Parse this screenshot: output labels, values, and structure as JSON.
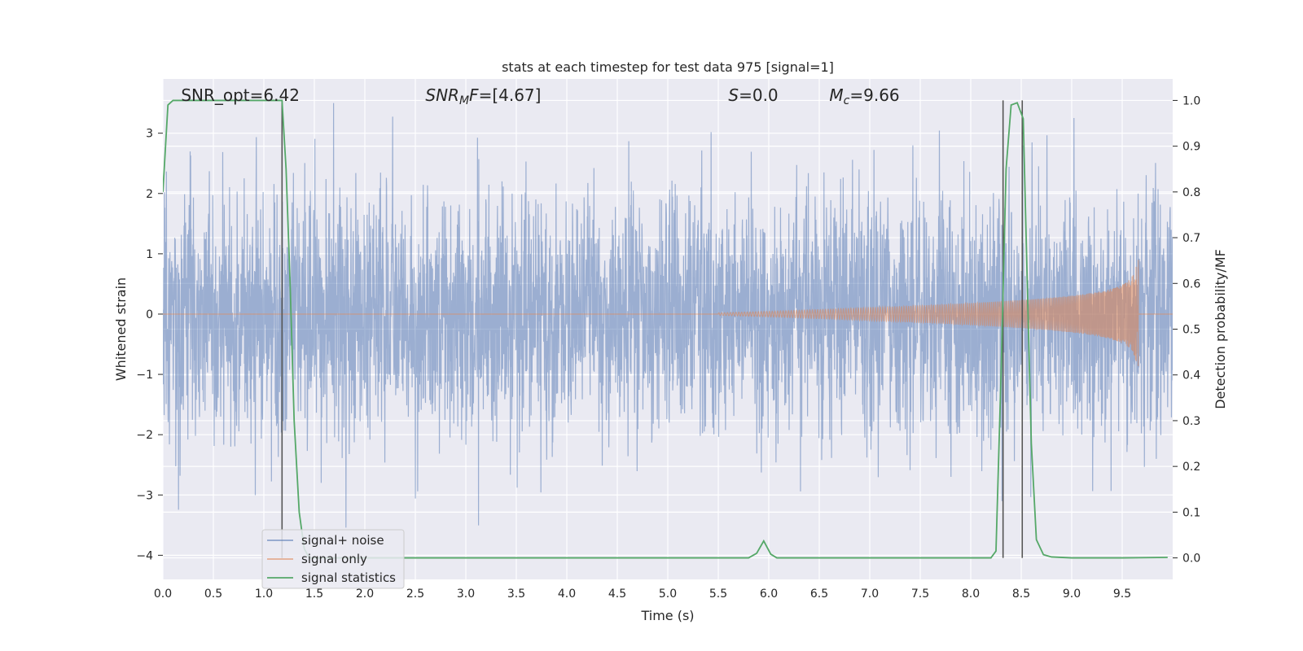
{
  "chart_data": {
    "type": "line",
    "title": "stats at each timestep for test data 975 [signal=1]",
    "xlabel": "Time (s)",
    "ylabel": "Whitened strain",
    "y2label": "Detection probability/MF",
    "xlim": [
      0,
      10
    ],
    "ylim": [
      -4.4,
      3.9
    ],
    "y2lim": [
      -0.047,
      1.047
    ],
    "x_ticks": [
      0.0,
      0.5,
      1.0,
      1.5,
      2.0,
      2.5,
      3.0,
      3.5,
      4.0,
      4.5,
      5.0,
      5.5,
      6.0,
      6.5,
      7.0,
      7.5,
      8.0,
      8.5,
      9.0,
      9.5
    ],
    "x_tick_labels": [
      "0.0",
      "0.5",
      "1.0",
      "1.5",
      "2.0",
      "2.5",
      "3.0",
      "3.5",
      "4.0",
      "4.5",
      "5.0",
      "5.5",
      "6.0",
      "6.5",
      "7.0",
      "7.5",
      "8.0",
      "8.5",
      "9.0",
      "9.5"
    ],
    "y_ticks": [
      -4,
      -3,
      -2,
      -1,
      0,
      1,
      2,
      3
    ],
    "y_tick_labels": [
      "−4",
      "−3",
      "−2",
      "−1",
      "0",
      "1",
      "2",
      "3"
    ],
    "y2_ticks": [
      0.0,
      0.1,
      0.2,
      0.3,
      0.4,
      0.5,
      0.6,
      0.7,
      0.8,
      0.9,
      1.0
    ],
    "y2_tick_labels": [
      "0.0",
      "0.1",
      "0.2",
      "0.3",
      "0.4",
      "0.5",
      "0.6",
      "0.7",
      "0.8",
      "0.9",
      "1.0"
    ],
    "grid": true,
    "legend_position": "lower-left",
    "annotations": [
      {
        "x": 0.18,
        "html": "SNR_opt=6.42"
      },
      {
        "x": 2.6,
        "html": "<tspan font-style='italic'>SNR</tspan><tspan font-style='italic' font-size='14' dy='4'>M</tspan><tspan font-style='italic' dy='-4'>F</tspan>=[4.67]"
      },
      {
        "x": 5.6,
        "html": "<tspan font-style='italic'>S</tspan>=0.0"
      },
      {
        "x": 6.6,
        "html": "<tspan font-style='italic'>M</tspan><tspan font-style='italic' font-size='14' dy='4'>c</tspan><tspan dy='-4'>=9.66</tspan>"
      }
    ],
    "vertical_markers": [
      1.18,
      8.32,
      8.51
    ],
    "series": [
      {
        "name": "signal+ noise",
        "color": "#4c72b0",
        "noise_std": 1.0,
        "x_range": [
          0,
          10
        ]
      },
      {
        "name": "signal only",
        "color": "#dd8452",
        "chirp_start": 5.5,
        "chirp_end": 9.66,
        "peak_amplitude": 0.9
      },
      {
        "name": "signal statistics",
        "color": "#55a868",
        "x": [
          0.0,
          0.05,
          0.1,
          0.2,
          0.3,
          0.5,
          0.7,
          0.9,
          1.1,
          1.18,
          1.22,
          1.26,
          1.3,
          1.35,
          1.4,
          1.45,
          2.0,
          3.0,
          4.0,
          5.0,
          5.8,
          5.88,
          5.95,
          6.02,
          6.08,
          6.5,
          7.0,
          7.5,
          8.0,
          8.2,
          8.25,
          8.3,
          8.35,
          8.4,
          8.46,
          8.52,
          8.56,
          8.6,
          8.65,
          8.72,
          8.8,
          9.0,
          9.5,
          9.95
        ],
        "y": [
          0.8,
          0.99,
          1.0,
          1.0,
          1.0,
          1.0,
          1.0,
          1.0,
          1.0,
          1.0,
          0.85,
          0.6,
          0.3,
          0.1,
          0.02,
          0.0,
          0.0,
          0.0,
          0.0,
          0.0,
          0.0,
          0.01,
          0.037,
          0.008,
          0.0,
          0.0,
          0.0,
          0.0,
          0.0,
          0.0,
          0.015,
          0.4,
          0.85,
          0.99,
          0.995,
          0.96,
          0.6,
          0.25,
          0.04,
          0.007,
          0.002,
          0.0,
          0.0,
          0.001
        ]
      }
    ]
  }
}
